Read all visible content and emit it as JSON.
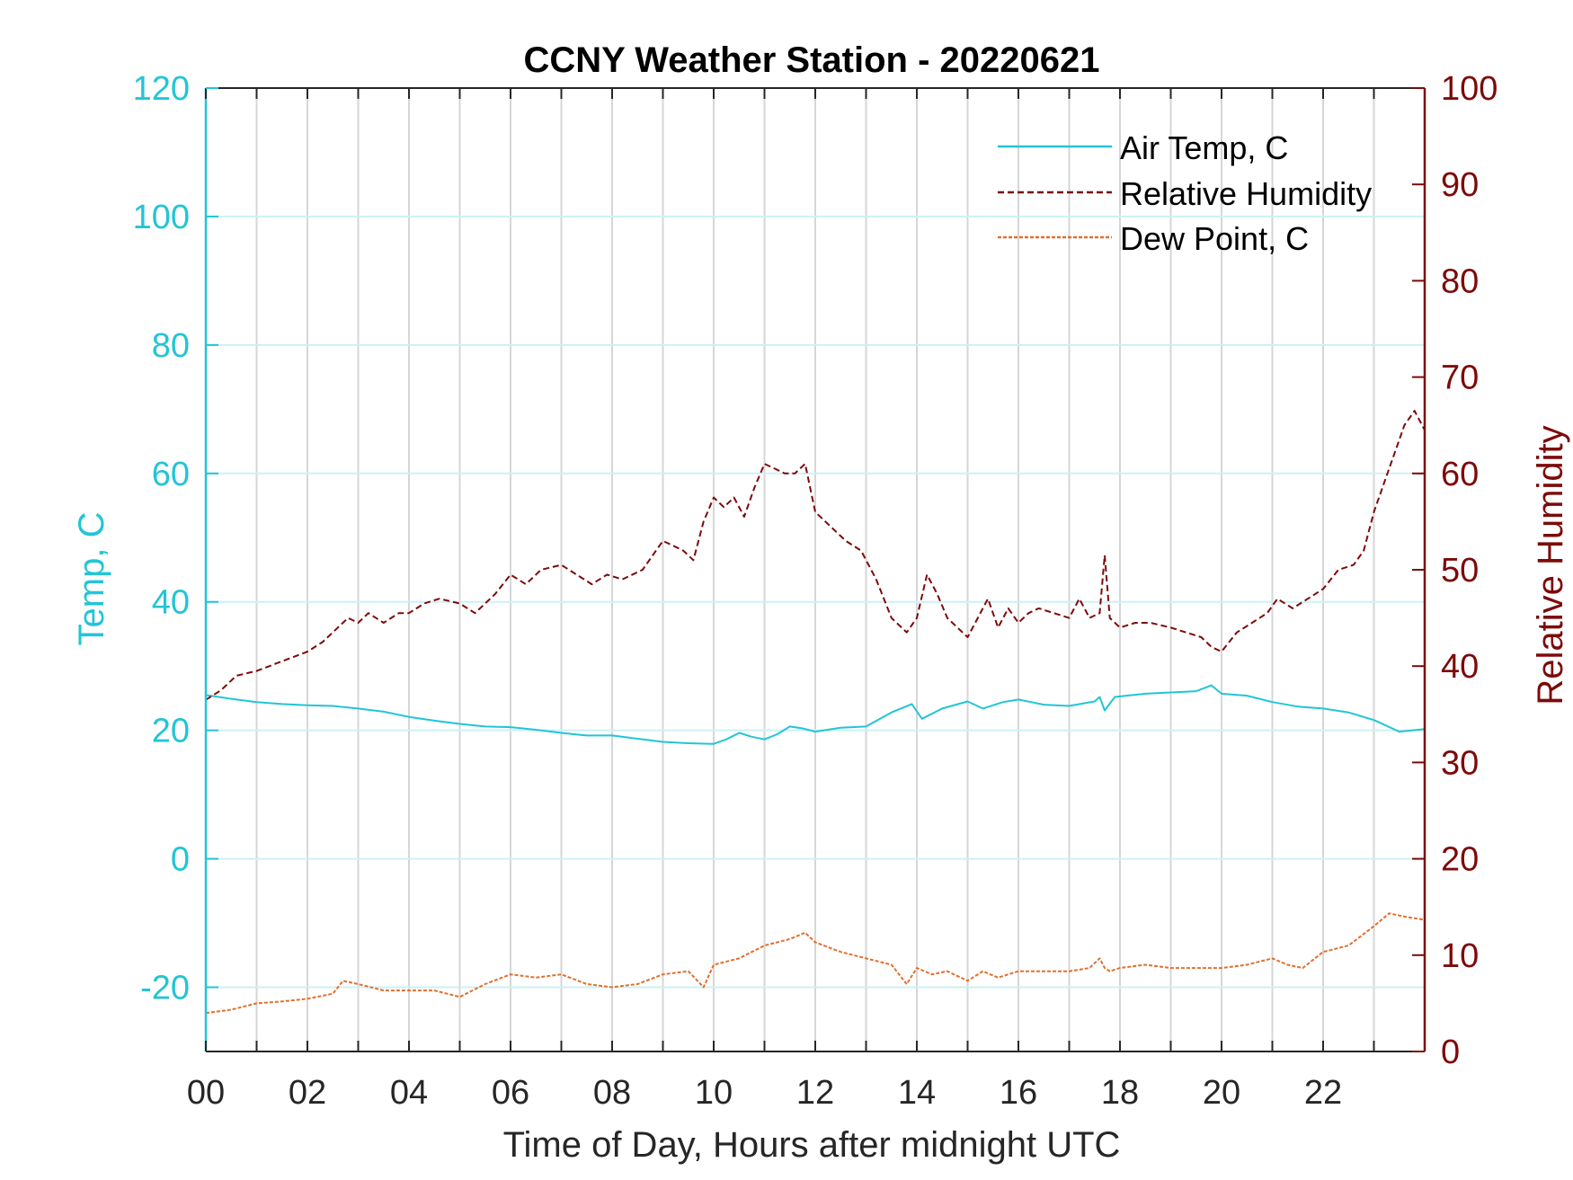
{
  "chart_data": {
    "type": "line",
    "title": "CCNY Weather Station - 20220621",
    "xlabel": "Time of Day, Hours after midnight UTC",
    "ylabel_left": "Temp, C",
    "ylabel_right": "Relative Humidity",
    "xlim": [
      0,
      24
    ],
    "ylim_left": [
      -30,
      120
    ],
    "ylim_right": [
      0,
      100
    ],
    "x_ticks": [
      0,
      2,
      4,
      6,
      8,
      10,
      12,
      14,
      16,
      18,
      20,
      22
    ],
    "x_tick_labels": [
      "00",
      "02",
      "04",
      "06",
      "08",
      "10",
      "12",
      "14",
      "16",
      "18",
      "20",
      "22"
    ],
    "y_ticks_left": [
      -20,
      0,
      20,
      40,
      60,
      80,
      100,
      120
    ],
    "y_tick_labels_left": [
      "-20",
      "0",
      "20",
      "40",
      "60",
      "80",
      "100",
      "120"
    ],
    "y_ticks_right": [
      0,
      10,
      20,
      30,
      40,
      50,
      60,
      70,
      80,
      90,
      100
    ],
    "y_tick_labels_right": [
      "0",
      "10",
      "20",
      "30",
      "40",
      "50",
      "60",
      "70",
      "80",
      "90",
      "100"
    ],
    "grid": true,
    "legend_position": "top-right",
    "colors": {
      "temp_axis": "#22c5d6",
      "rh_axis": "#7d0a0a",
      "air_temp": "#22c5d6",
      "humidity": "#7d0a0a",
      "dew_point": "#e07030",
      "grid_vertical": "#d6d6d6",
      "grid_horizontal": "#ccf1f6"
    },
    "series": [
      {
        "name": "Air Temp, C",
        "axis": "left",
        "style": "solid",
        "x": [
          0,
          0.5,
          1,
          1.5,
          2,
          2.5,
          3,
          3.5,
          4,
          4.5,
          5,
          5.5,
          6,
          6.5,
          7,
          7.5,
          8,
          8.5,
          9,
          9.5,
          10,
          10.25,
          10.5,
          10.75,
          11,
          11.25,
          11.5,
          11.75,
          12,
          12.5,
          13,
          13.5,
          13.9,
          14.1,
          14.5,
          15,
          15.3,
          15.7,
          16,
          16.5,
          17,
          17.5,
          17.6,
          17.7,
          17.9,
          18.5,
          19,
          19.5,
          19.8,
          20,
          20.5,
          21,
          21.5,
          22,
          22.5,
          23,
          23.5,
          24
        ],
        "values": [
          25.5,
          24.9,
          24.4,
          24.1,
          23.9,
          23.8,
          23.4,
          22.9,
          22.1,
          21.5,
          21.0,
          20.6,
          20.5,
          20.1,
          19.6,
          19.2,
          19.2,
          18.7,
          18.2,
          18.0,
          17.9,
          18.6,
          19.6,
          19.0,
          18.6,
          19.4,
          20.6,
          20.3,
          19.8,
          20.4,
          20.6,
          22.8,
          24.1,
          21.8,
          23.4,
          24.5,
          23.4,
          24.4,
          24.8,
          24.0,
          23.8,
          24.5,
          25.2,
          23.1,
          25.2,
          25.7,
          25.9,
          26.1,
          27.0,
          25.7,
          25.4,
          24.4,
          23.7,
          23.4,
          22.8,
          21.6,
          19.8,
          20.2
        ]
      },
      {
        "name": "Relative Humidity",
        "axis": "right",
        "style": "dashed",
        "x": [
          0,
          0.3,
          0.6,
          1,
          1.5,
          2,
          2.3,
          2.6,
          2.8,
          3,
          3.2,
          3.5,
          3.8,
          4,
          4.3,
          4.6,
          5,
          5.3,
          5.7,
          6,
          6.3,
          6.6,
          7,
          7.3,
          7.6,
          7.9,
          8.2,
          8.6,
          9,
          9.4,
          9.6,
          9.8,
          10,
          10.2,
          10.4,
          10.6,
          10.8,
          11,
          11.2,
          11.4,
          11.6,
          11.8,
          12,
          12.3,
          12.6,
          12.9,
          13.2,
          13.5,
          13.8,
          14,
          14.2,
          14.4,
          14.6,
          14.8,
          15,
          15.2,
          15.4,
          15.6,
          15.8,
          16,
          16.2,
          16.4,
          16.7,
          17,
          17.2,
          17.4,
          17.6,
          17.7,
          17.8,
          18,
          18.3,
          18.6,
          19,
          19.3,
          19.6,
          19.8,
          20,
          20.3,
          20.6,
          20.9,
          21.1,
          21.4,
          21.7,
          22,
          22.3,
          22.6,
          22.8,
          23,
          23.2,
          23.4,
          23.6,
          23.8,
          24
        ],
        "values": [
          36.5,
          37.5,
          39,
          39.5,
          40.5,
          41.5,
          42.5,
          44,
          45,
          44.5,
          45.5,
          44.5,
          45.5,
          45.5,
          46.5,
          47,
          46.5,
          45.5,
          47.5,
          49.5,
          48.5,
          50,
          50.5,
          49.5,
          48.5,
          49.5,
          49,
          50,
          53,
          52,
          51,
          55,
          57.5,
          56.5,
          57.5,
          55.5,
          58.5,
          61,
          60.5,
          60,
          60,
          61,
          56,
          54.5,
          53,
          52,
          49,
          45,
          43.5,
          45,
          49.5,
          47.5,
          45,
          44,
          43,
          45,
          47,
          44,
          46,
          44.5,
          45.5,
          46,
          45.5,
          45,
          47,
          45,
          45.5,
          51.5,
          45,
          44,
          44.5,
          44.5,
          44,
          43.5,
          43,
          42,
          41.5,
          43.5,
          44.5,
          45.5,
          47,
          46,
          47,
          48,
          50,
          50.5,
          52,
          56,
          59,
          62,
          65,
          66.5,
          64.5
        ]
      },
      {
        "name": "Dew Point, C",
        "axis": "left",
        "style": "dashed-fine",
        "x": [
          0,
          0.5,
          1,
          1.5,
          2,
          2.5,
          2.7,
          3,
          3.5,
          4,
          4.5,
          5,
          5.5,
          6,
          6.5,
          7,
          7.5,
          8,
          8.5,
          9,
          9.5,
          9.8,
          10,
          10.5,
          11,
          11.5,
          11.8,
          12,
          12.5,
          13,
          13.5,
          13.8,
          14,
          14.3,
          14.6,
          15,
          15.3,
          15.6,
          16,
          16.5,
          17,
          17.4,
          17.6,
          17.7,
          17.8,
          18,
          18.5,
          19,
          19.5,
          19.8,
          20,
          20.5,
          21,
          21.3,
          21.6,
          22,
          22.5,
          23,
          23.3,
          23.6,
          24
        ],
        "values": [
          -24,
          -23.5,
          -22.5,
          -22.2,
          -21.8,
          -21,
          -19,
          -19.5,
          -20.5,
          -20.5,
          -20.5,
          -21.5,
          -19.5,
          -18,
          -18.5,
          -18,
          -19.5,
          -20,
          -19.5,
          -18,
          -17.5,
          -20,
          -16.5,
          -15.5,
          -13.5,
          -12.5,
          -11.5,
          -13,
          -14.5,
          -15.5,
          -16.5,
          -19.5,
          -17,
          -18,
          -17.5,
          -19,
          -17.5,
          -18.5,
          -17.5,
          -17.5,
          -17.5,
          -17,
          -15.5,
          -17,
          -17.5,
          -17,
          -16.5,
          -17,
          -17,
          -17,
          -17,
          -16.5,
          -15.5,
          -16.5,
          -17,
          -14.5,
          -13.5,
          -10.5,
          -8.5,
          -9,
          -9.5
        ]
      }
    ]
  }
}
